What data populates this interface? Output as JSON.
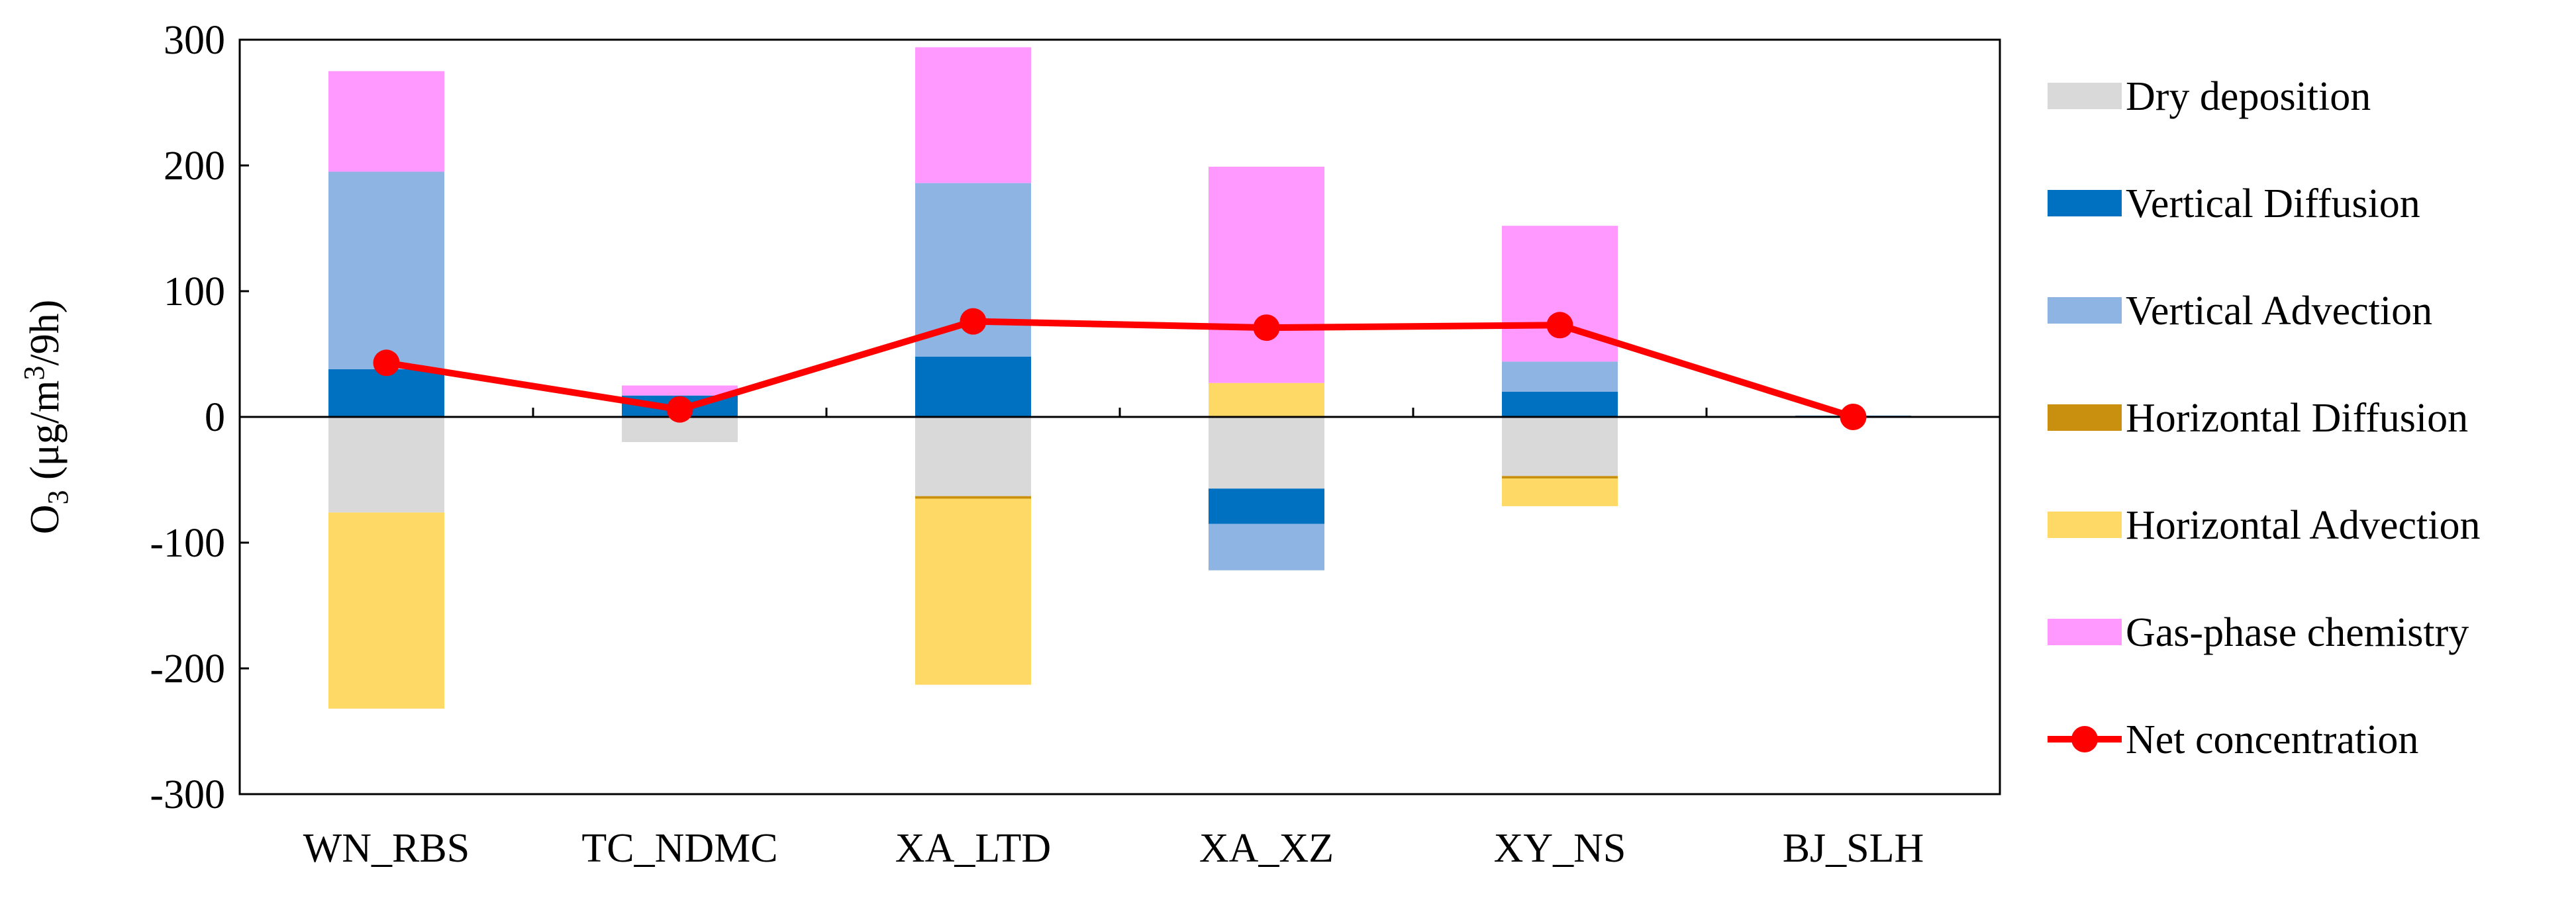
{
  "chart_data": {
    "type": "bar",
    "stacked": true,
    "title": "",
    "xlabel": "",
    "ylabel": {
      "main": "O",
      "sub": "3",
      "mid": " (μg/m",
      "sup": "3",
      "end": "/9h)"
    },
    "ylim": [
      -300,
      300
    ],
    "yticks": [
      300,
      200,
      100,
      0,
      -100,
      -200,
      -300
    ],
    "categories": [
      "WN_RBS",
      "TC_NDMC",
      "XA_LTD",
      "XA_XZ",
      "XY_NS",
      "BJ_SLH"
    ],
    "series": [
      {
        "name": "Dry deposition",
        "color": "#d9d9d9",
        "values": [
          -76,
          -20,
          -63,
          -57,
          -47,
          0
        ]
      },
      {
        "name": "Vertical Diffusion",
        "color": "#0070c0",
        "values": [
          38,
          17,
          48,
          -28,
          20,
          1
        ]
      },
      {
        "name": "Vertical Advection",
        "color": "#8eb4e3",
        "values": [
          157,
          0,
          138,
          -37,
          24,
          0
        ]
      },
      {
        "name": "Horizontal  Diffusion",
        "color": "#c9900f",
        "values": [
          0,
          0,
          -2,
          0,
          -2,
          0
        ]
      },
      {
        "name": "Horizontal Advection",
        "color": "#ffd966",
        "values": [
          -156,
          0,
          -148,
          27,
          -22,
          0
        ]
      },
      {
        "name": "Gas-phase chemistry",
        "color": "#ff99ff",
        "values": [
          80,
          8,
          108,
          172,
          108,
          0
        ]
      }
    ],
    "line": {
      "name": "Net concentration",
      "color": "#ff0000",
      "values": [
        43,
        6,
        76,
        71,
        73,
        0
      ]
    },
    "legend_placement": "right",
    "grid": false
  }
}
